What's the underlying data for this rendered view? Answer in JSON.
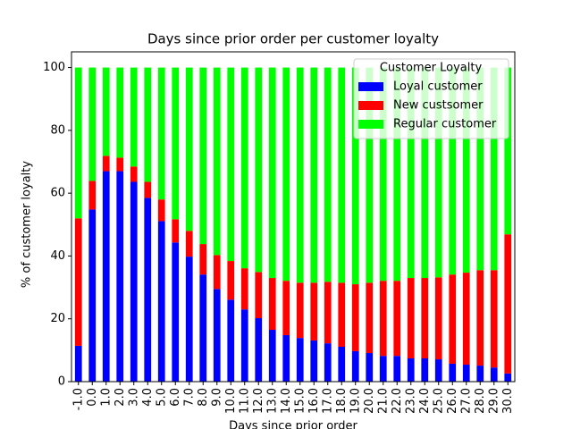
{
  "chart_data": {
    "type": "stacked_bar",
    "title": "Days since prior order per customer loyalty",
    "x_label": "Days since prior order",
    "y_label": "% of customer loyalty",
    "legend_title": "Customer Loyalty",
    "legend_position": "upper right",
    "categories": [
      "-1.0",
      "0.0",
      "1.0",
      "2.0",
      "3.0",
      "4.0",
      "5.0",
      "6.0",
      "7.0",
      "8.0",
      "9.0",
      "10.0",
      "11.0",
      "12.0",
      "13.0",
      "14.0",
      "15.0",
      "16.0",
      "17.0",
      "18.0",
      "19.0",
      "20.0",
      "21.0",
      "22.0",
      "23.0",
      "24.0",
      "25.0",
      "26.0",
      "27.0",
      "28.0",
      "29.0",
      "30.0"
    ],
    "series": [
      {
        "name": "Loyal customer",
        "color": "#0000ff",
        "values": [
          11.4,
          54.8,
          67.0,
          67.0,
          63.6,
          58.5,
          51.1,
          44.3,
          39.8,
          34.1,
          29.5,
          26.1,
          23.0,
          20.2,
          16.5,
          14.8,
          13.9,
          13.1,
          12.2,
          11.1,
          9.7,
          9.1,
          8.2,
          8.2,
          7.4,
          7.4,
          7.1,
          5.7,
          5.4,
          5.1,
          4.5,
          2.6
        ]
      },
      {
        "name": "New custsomer",
        "color": "#ff0000",
        "values": [
          40.6,
          9.1,
          4.9,
          4.3,
          4.9,
          5.1,
          6.9,
          7.4,
          8.2,
          9.7,
          10.8,
          12.3,
          13.1,
          14.7,
          16.5,
          17.3,
          17.6,
          18.4,
          19.6,
          20.4,
          21.3,
          22.4,
          23.9,
          23.9,
          25.6,
          25.6,
          26.1,
          28.4,
          29.3,
          30.4,
          31.0,
          44.3
        ]
      },
      {
        "name": "Regular customer",
        "color": "#00ff00",
        "values": [
          48.0,
          36.1,
          28.1,
          28.7,
          31.5,
          36.4,
          42.0,
          48.3,
          52.0,
          56.2,
          59.7,
          61.6,
          63.9,
          65.1,
          67.0,
          67.9,
          68.5,
          68.5,
          68.2,
          68.5,
          69.0,
          68.5,
          67.9,
          67.9,
          67.0,
          67.0,
          66.8,
          65.9,
          65.3,
          64.5,
          64.5,
          53.1
        ]
      }
    ],
    "ylim": [
      0,
      105
    ],
    "yticks": [
      0,
      20,
      40,
      60,
      80,
      100
    ]
  }
}
